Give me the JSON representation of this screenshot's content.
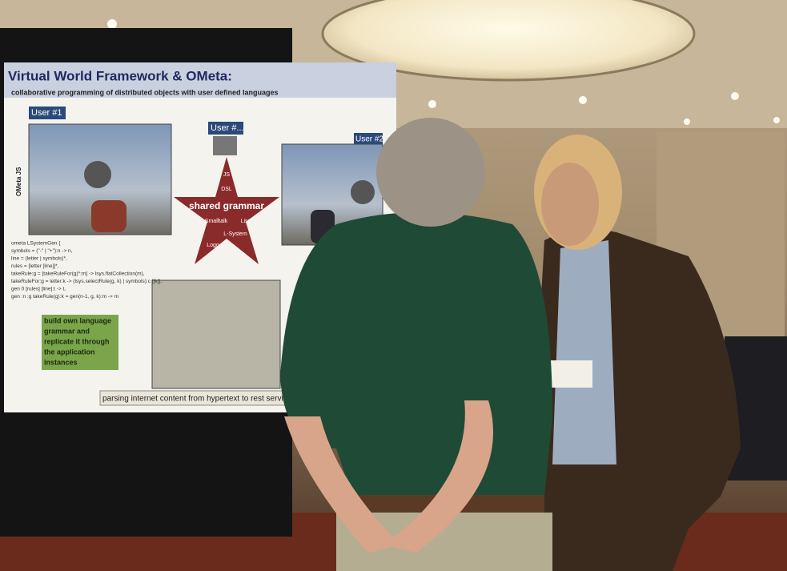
{
  "poster": {
    "title": "Virtual World Framework & OMeta:",
    "subtitle": "collaborative programming of distributed objects with user defined languages",
    "side_label": "OMeta JS",
    "users": [
      "User #1",
      "User #...",
      "User #2"
    ],
    "star": {
      "center": "shared grammar",
      "labels": [
        "JS",
        "DSL",
        "Smalltalk",
        "Lisp",
        "L-System",
        "Logo"
      ]
    },
    "code": [
      "ometa LSystemGen {",
      "symbols = (\"-\" | \"+\"):n -> n,",
      "line = (letter | symbols)*,",
      "rules = [letter [line]]*,",
      "takeRule:g = [takeRuleFor(g)*:m] -> lsys.flatCollection(m),",
      "takeRuleFor:g = letter:k -> (lsys.selectRule(g, k) | symbols):c [[k]],",
      "gen 0 [rules] [line]:t -> t,",
      "gen :n :g takeRule(g):k = gen(n-1, g, k):m -> m"
    ],
    "green_box": [
      "build own language",
      "grammar and",
      "replicate it through",
      "the application",
      "instances"
    ],
    "caption": "parsing internet content from hypertext to rest servic"
  }
}
